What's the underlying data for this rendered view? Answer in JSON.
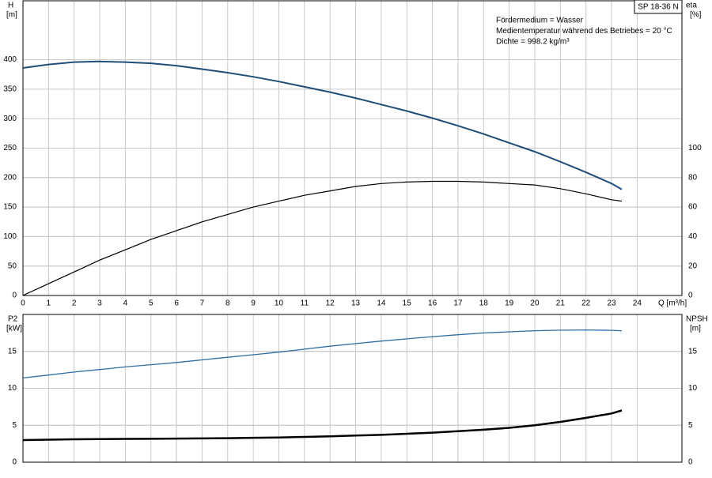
{
  "chart_data": [
    {
      "type": "line",
      "title": "SP 18-36 N",
      "y_label": "H",
      "y_unit": "[m]",
      "y2_label": "eta",
      "y2_unit": "[%]",
      "x_label": "Q [m³/h]",
      "annotations": [
        "Fördermedium = Wasser",
        "Medientemperatur während des Betriebes = 20 °C",
        "Dichte = 998.2 kg/m³"
      ],
      "x": [
        0,
        1,
        2,
        3,
        4,
        5,
        6,
        7,
        8,
        9,
        10,
        11,
        12,
        13,
        14,
        15,
        16,
        17,
        18,
        19,
        20,
        21,
        22,
        23,
        23.4
      ],
      "series": [
        {
          "color": "#1f4e79",
          "values": [
            386,
            392,
            396,
            397,
            396,
            394,
            390,
            384,
            378,
            371,
            363,
            354,
            345,
            335,
            324,
            313,
            301,
            288,
            274,
            259,
            244,
            227,
            209,
            190,
            180
          ]
        },
        {
          "color": "#000000",
          "axis": "y2",
          "values": [
            0,
            8,
            16,
            24,
            31,
            38,
            44,
            50,
            55,
            60,
            64,
            68,
            71,
            74,
            76,
            77,
            77.5,
            77.5,
            77,
            76,
            75,
            72.5,
            69,
            65,
            64
          ]
        }
      ],
      "xlim": [
        0,
        25.75
      ],
      "xticks": [
        0,
        1,
        2,
        3,
        4,
        5,
        6,
        7,
        8,
        9,
        10,
        11,
        12,
        13,
        14,
        15,
        16,
        17,
        18,
        19,
        20,
        21,
        22,
        23,
        24
      ],
      "ylim": [
        0,
        500
      ],
      "yticks": [
        0,
        50,
        100,
        150,
        200,
        250,
        300,
        350,
        400
      ],
      "y2lim": [
        0,
        200
      ],
      "y2ticks": [
        0,
        20,
        40,
        60,
        80,
        100
      ],
      "grid": true
    },
    {
      "type": "line",
      "y_label": "P2",
      "y_unit": "[kW]",
      "y2_label": "NPSH",
      "y2_unit": "[m]",
      "x": [
        0,
        1,
        2,
        3,
        4,
        5,
        6,
        7,
        8,
        9,
        10,
        11,
        12,
        13,
        14,
        15,
        16,
        17,
        18,
        19,
        20,
        21,
        22,
        23,
        23.4
      ],
      "series": [
        {
          "color": "#2e6da4",
          "values": [
            11.4,
            11.8,
            12.2,
            12.55,
            12.9,
            13.2,
            13.5,
            13.85,
            14.2,
            14.55,
            14.9,
            15.3,
            15.7,
            16.05,
            16.4,
            16.7,
            17.0,
            17.25,
            17.5,
            17.65,
            17.8,
            17.87,
            17.9,
            17.85,
            17.8
          ]
        },
        {
          "color": "#000000",
          "axis": "y2",
          "values": [
            3.0,
            3.05,
            3.1,
            3.12,
            3.15,
            3.17,
            3.2,
            3.22,
            3.25,
            3.3,
            3.35,
            3.42,
            3.5,
            3.6,
            3.7,
            3.85,
            4.0,
            4.2,
            4.4,
            4.65,
            5.0,
            5.45,
            6.0,
            6.6,
            7.0
          ]
        }
      ],
      "xlim": [
        0,
        25.75
      ],
      "xticks": [
        0,
        1,
        2,
        3,
        4,
        5,
        6,
        7,
        8,
        9,
        10,
        11,
        12,
        13,
        14,
        15,
        16,
        17,
        18,
        19,
        20,
        21,
        22,
        23,
        24
      ],
      "ylim": [
        0,
        20
      ],
      "yticks": [
        0,
        5,
        10,
        15
      ],
      "y2lim": [
        0,
        20
      ],
      "y2ticks": [
        0,
        5,
        10,
        15
      ],
      "grid": true
    }
  ]
}
